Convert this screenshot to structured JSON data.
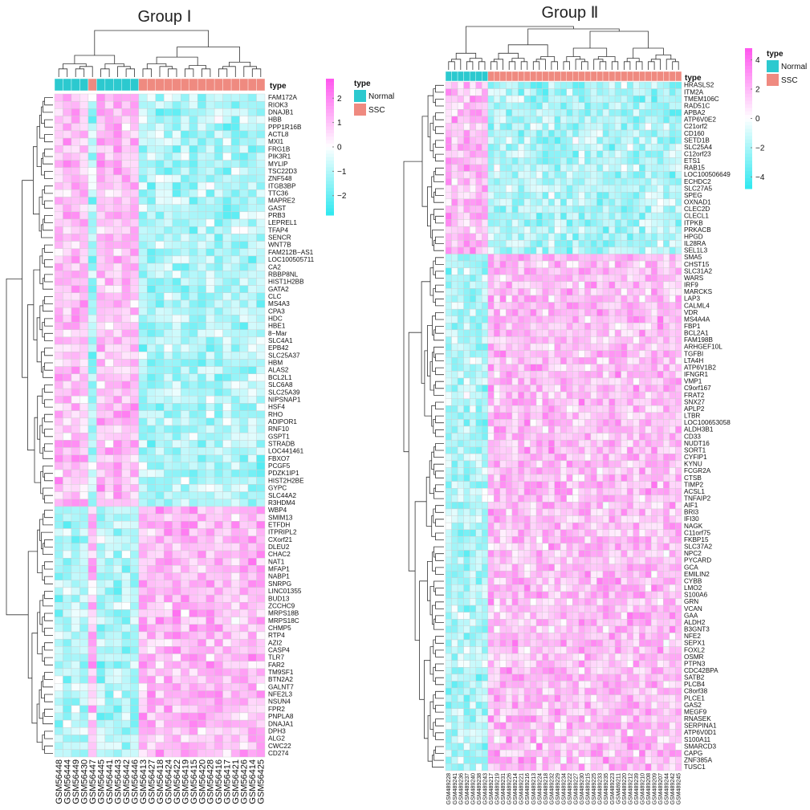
{
  "chart_data": [
    {
      "type": "heatmap",
      "title": "Group Ⅰ",
      "annotation_label": "type",
      "legend_title": "type",
      "color_scale": {
        "ticks": [
          "2",
          "1",
          "0",
          "−1",
          "−2"
        ],
        "tick_values": [
          2,
          1,
          0,
          -1,
          -2
        ],
        "range": [
          -2.8,
          2.8
        ],
        "low_color": "#2ee8f0",
        "mid_color": "#ffffff",
        "high_color": "#ff55ee"
      },
      "groups": [
        {
          "name": "Normal",
          "color": "#2cc9cf"
        },
        {
          "name": "SSC",
          "color": "#ef8a80"
        }
      ],
      "samples": [
        "GSM56448",
        "GSM56444",
        "GSM56449",
        "GSM56430",
        "GSM56447",
        "GSM56445",
        "GSM56441",
        "GSM56443",
        "GSM56442",
        "GSM56446",
        "GSM56413",
        "GSM56427",
        "GSM56418",
        "GSM56424",
        "GSM56422",
        "GSM56419",
        "GSM56415",
        "GSM56420",
        "GSM56428",
        "GSM56416",
        "GSM56417",
        "GSM56421",
        "GSM56426",
        "GSM56414",
        "GSM56425"
      ],
      "sample_types": [
        "Normal",
        "Normal",
        "Normal",
        "Normal",
        "SSC",
        "Normal",
        "Normal",
        "Normal",
        "Normal",
        "Normal",
        "SSC",
        "SSC",
        "SSC",
        "SSC",
        "SSC",
        "SSC",
        "SSC",
        "SSC",
        "SSC",
        "SSC",
        "SSC",
        "SSC",
        "SSC",
        "SSC",
        "SSC"
      ],
      "genes": [
        "FAM172A",
        "RIOK3",
        "DNAJB1",
        "HBB",
        "PPP1R16B",
        "ACTL8",
        "MXI1",
        "FRG1B",
        "PIK3R1",
        "MYLIP",
        "TSC22D3",
        "ZNF548",
        "ITGB3BP",
        "TTC36",
        "MAPRE2",
        "GAST",
        "PRB3",
        "LEPREL1",
        "TFAP4",
        "SENCR",
        "WNT7B",
        "FAM212B−AS1",
        "LOC100505711",
        "CA2",
        "RBBP8NL",
        "HIST1H2BB",
        "GATA2",
        "CLC",
        "MS4A3",
        "CPA3",
        "HDC",
        "HBE1",
        "8−Mar",
        "SLC4A1",
        "EPB42",
        "SLC25A37",
        "HBM",
        "ALAS2",
        "BCL2L1",
        "SLC6A8",
        "SLC25A39",
        "NIPSNAP1",
        "HSF4",
        "RHO",
        "ADIPOR1",
        "RNF10",
        "GSPT1",
        "STRADB",
        "LOC441461",
        "FBXO7",
        "PCGF5",
        "PDZK1IP1",
        "HIST2H2BE",
        "GYPC",
        "SLC44A2",
        "R3HDM4",
        "WBP4",
        "SMIM13",
        "ETFDH",
        "ITPRIPL2",
        "CXorf21",
        "DLEU2",
        "CHAC2",
        "NAT1",
        "MFAP1",
        "NABP1",
        "SNRPG",
        "LINC01355",
        "BUD13",
        "ZCCHC9",
        "MRPS18B",
        "MRPS18C",
        "CHMP5",
        "RTP4",
        "AZI2",
        "CASP4",
        "TLR7",
        "FAR2",
        "TM9SF1",
        "BTN2A2",
        "GALNT7",
        "NFE2L3",
        "NSUN4",
        "FPR2",
        "PNPLA8",
        "DNAJA1",
        "DPH3",
        "ALG2",
        "CWC22",
        "CD274"
      ],
      "up_gene_count": 56
    },
    {
      "type": "heatmap",
      "title": "Group Ⅱ",
      "annotation_label": "type",
      "legend_title": "type",
      "color_scale": {
        "ticks": [
          "4",
          "2",
          "0",
          "−2",
          "−4"
        ],
        "tick_values": [
          4,
          2,
          0,
          -2,
          -4
        ],
        "range": [
          -4.8,
          4.8
        ],
        "low_color": "#2ee8f0",
        "mid_color": "#ffffff",
        "high_color": "#ff55ee"
      },
      "groups": [
        {
          "name": "Normal",
          "color": "#2cc9cf"
        },
        {
          "name": "SSC",
          "color": "#ef8a80"
        }
      ],
      "samples": [
        "GSM489228",
        "GSM489241",
        "GSM489236",
        "GSM489237",
        "GSM489240",
        "GSM489238",
        "GSM489243",
        "GSM489217",
        "GSM489219",
        "GSM489231",
        "GSM489226",
        "GSM489214",
        "GSM489221",
        "GSM489216",
        "GSM489213",
        "GSM489224",
        "GSM489218",
        "GSM489232",
        "GSM489229",
        "GSM489234",
        "GSM489222",
        "GSM489227",
        "GSM489230",
        "GSM489215",
        "GSM489225",
        "GSM489233",
        "GSM489235",
        "GSM489223",
        "GSM489211",
        "GSM489220",
        "GSM489212",
        "GSM489239",
        "GSM489210",
        "GSM489208",
        "GSM489209",
        "GSM489207",
        "GSM489244",
        "GSM489242",
        "GSM489245"
      ],
      "sample_types": [
        "Normal",
        "Normal",
        "Normal",
        "Normal",
        "Normal",
        "Normal",
        "Normal",
        "SSC",
        "SSC",
        "SSC",
        "SSC",
        "SSC",
        "SSC",
        "SSC",
        "SSC",
        "SSC",
        "SSC",
        "SSC",
        "SSC",
        "SSC",
        "SSC",
        "SSC",
        "SSC",
        "SSC",
        "SSC",
        "SSC",
        "SSC",
        "SSC",
        "SSC",
        "SSC",
        "SSC",
        "SSC",
        "SSC",
        "SSC",
        "SSC",
        "SSC",
        "SSC",
        "SSC",
        "SSC"
      ],
      "genes": [
        "HRASLS2",
        "ITM2A",
        "TMEM106C",
        "RAD51C",
        "APBA2",
        "ATP6V0E2",
        "C21orf2",
        "CD160",
        "SETD1B",
        "SLC25A4",
        "C12orf23",
        "ETS1",
        "RAB15",
        "LOC100506649",
        "ECHDC2",
        "SLC27A5",
        "SPEG",
        "OXNAD1",
        "CLEC2D",
        "CLECL1",
        "ITPKB",
        "PRKACB",
        "HPGD",
        "IL28RA",
        "SEL1L3",
        "SMA5",
        "CHST15",
        "SLC31A2",
        "WARS",
        "IRF9",
        "MARCKS",
        "LAP3",
        "CALML4",
        "VDR",
        "MS4A4A",
        "FBP1",
        "BCL2A1",
        "FAM198B",
        "ARHGEF10L",
        "TGFBI",
        "LTA4H",
        "ATP6V1B2",
        "IFNGR1",
        "VMP1",
        "C9orf167",
        "FRAT2",
        "SNX27",
        "APLP2",
        "LTBR",
        "LOC100653058",
        "ALDH3B1",
        "CD33",
        "NUDT16",
        "SORT1",
        "CYFIP1",
        "KYNU",
        "FCGR2A",
        "CTSB",
        "TIMP2",
        "ACSL1",
        "TNFAIP2",
        "AIF1",
        "BRI3",
        "IFI30",
        "NAGK",
        "C11orf75",
        "FKBP15",
        "SLC37A2",
        "NPC2",
        "PYCARD",
        "GCA",
        "EMILIN2",
        "CYBB",
        "LMO2",
        "S100A6",
        "GRN",
        "VCAN",
        "GAA",
        "ALDH2",
        "B3GNT3",
        "NFE2",
        "SEPX1",
        "FOXL2",
        "OSMR",
        "PTPN3",
        "CDC42BPA",
        "SATB2",
        "PLCB4",
        "C8orf38",
        "PLCE1",
        "GAS2",
        "MEGF9",
        "RNASEK",
        "SERPINA1",
        "ATP6V0D1",
        "S100A11",
        "SMARCD3",
        "CAPG",
        "ZNF385A",
        "TUSC1"
      ],
      "up_gene_count": 25
    }
  ]
}
